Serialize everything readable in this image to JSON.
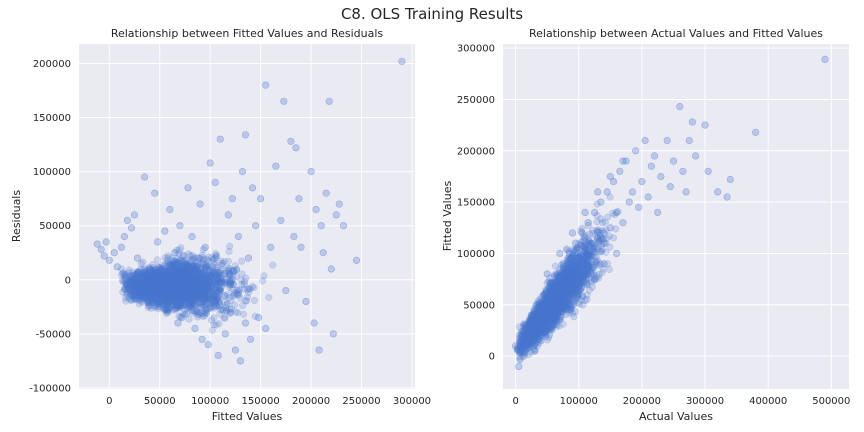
{
  "figure": {
    "title": "C8. OLS Training Results"
  },
  "colors": {
    "point": "#4878cf",
    "background": "#eaeaf2",
    "grid": "#ffffff"
  },
  "chart_data": [
    {
      "type": "scatter",
      "title": "Relationship between Fitted Values and Residuals",
      "xlabel": "Fitted Values",
      "ylabel": "Residuals",
      "xlim": [
        -30000,
        303000
      ],
      "ylim": [
        -101000,
        218000
      ],
      "xticks": [
        0,
        50000,
        100000,
        150000,
        200000,
        250000,
        300000
      ],
      "yticks": [
        -100000,
        -50000,
        0,
        50000,
        100000,
        150000,
        200000
      ],
      "grid": true,
      "points": [
        [
          -12000,
          33000
        ],
        [
          -8000,
          28000
        ],
        [
          -5000,
          22000
        ],
        [
          -3000,
          35000
        ],
        [
          0,
          18000
        ],
        [
          5000,
          25000
        ],
        [
          8000,
          12000
        ],
        [
          12000,
          30000
        ],
        [
          15000,
          40000
        ],
        [
          18000,
          55000
        ],
        [
          22000,
          48000
        ],
        [
          25000,
          60000
        ],
        [
          28000,
          20000
        ],
        [
          30000,
          -5000
        ],
        [
          35000,
          95000
        ],
        [
          40000,
          10000
        ],
        [
          42000,
          -10000
        ],
        [
          45000,
          80000
        ],
        [
          48000,
          35000
        ],
        [
          50000,
          -20000
        ],
        [
          55000,
          45000
        ],
        [
          58000,
          -30000
        ],
        [
          60000,
          65000
        ],
        [
          62000,
          -15000
        ],
        [
          65000,
          25000
        ],
        [
          68000,
          -40000
        ],
        [
          70000,
          50000
        ],
        [
          72000,
          -35000
        ],
        [
          75000,
          10000
        ],
        [
          78000,
          85000
        ],
        [
          80000,
          -25000
        ],
        [
          82000,
          40000
        ],
        [
          85000,
          -45000
        ],
        [
          88000,
          20000
        ],
        [
          90000,
          70000
        ],
        [
          92000,
          -55000
        ],
        [
          95000,
          30000
        ],
        [
          98000,
          -60000
        ],
        [
          100000,
          108000
        ],
        [
          102000,
          -20000
        ],
        [
          105000,
          90000
        ],
        [
          108000,
          -70000
        ],
        [
          110000,
          130000
        ],
        [
          112000,
          15000
        ],
        [
          115000,
          -50000
        ],
        [
          118000,
          60000
        ],
        [
          120000,
          -30000
        ],
        [
          122000,
          75000
        ],
        [
          125000,
          -65000
        ],
        [
          128000,
          40000
        ],
        [
          130000,
          -75000
        ],
        [
          132000,
          100000
        ],
        [
          135000,
          -40000
        ],
        [
          135000,
          134000
        ],
        [
          138000,
          20000
        ],
        [
          140000,
          -55000
        ],
        [
          142000,
          85000
        ],
        [
          145000,
          50000
        ],
        [
          148000,
          -35000
        ],
        [
          150000,
          75000
        ],
        [
          155000,
          180000
        ],
        [
          155000,
          -45000
        ],
        [
          160000,
          30000
        ],
        [
          165000,
          105000
        ],
        [
          170000,
          55000
        ],
        [
          173000,
          165000
        ],
        [
          175000,
          -10000
        ],
        [
          180000,
          128000
        ],
        [
          183000,
          40000
        ],
        [
          185000,
          122000
        ],
        [
          188000,
          75000
        ],
        [
          190000,
          30000
        ],
        [
          195000,
          -20000
        ],
        [
          200000,
          100000
        ],
        [
          203000,
          -40000
        ],
        [
          205000,
          65000
        ],
        [
          208000,
          -65000
        ],
        [
          210000,
          50000
        ],
        [
          212000,
          25000
        ],
        [
          215000,
          80000
        ],
        [
          218000,
          165000
        ],
        [
          220000,
          10000
        ],
        [
          222000,
          -50000
        ],
        [
          225000,
          60000
        ],
        [
          228000,
          70000
        ],
        [
          232000,
          50000
        ],
        [
          245000,
          18000
        ],
        [
          290000,
          202000
        ]
      ]
    },
    {
      "type": "scatter",
      "title": "Relationship between Actual Values and Fitted Values",
      "xlabel": "Actual Values",
      "ylabel": "Fitted Values",
      "xlim": [
        -20000,
        528000
      ],
      "ylim": [
        -32000,
        304000
      ],
      "xticks": [
        0,
        100000,
        200000,
        300000,
        400000,
        500000
      ],
      "yticks": [
        0,
        50000,
        100000,
        150000,
        200000,
        250000,
        300000
      ],
      "grid": true,
      "points": [
        [
          0,
          10000
        ],
        [
          5000,
          -10000
        ],
        [
          10000,
          20000
        ],
        [
          15000,
          5000
        ],
        [
          20000,
          30000
        ],
        [
          25000,
          40000
        ],
        [
          30000,
          25000
        ],
        [
          35000,
          50000
        ],
        [
          40000,
          35000
        ],
        [
          45000,
          60000
        ],
        [
          50000,
          45000
        ],
        [
          55000,
          70000
        ],
        [
          60000,
          55000
        ],
        [
          65000,
          80000
        ],
        [
          70000,
          65000
        ],
        [
          75000,
          90000
        ],
        [
          80000,
          75000
        ],
        [
          85000,
          100000
        ],
        [
          90000,
          85000
        ],
        [
          95000,
          110000
        ],
        [
          100000,
          95000
        ],
        [
          105000,
          120000
        ],
        [
          110000,
          105000
        ],
        [
          115000,
          130000
        ],
        [
          120000,
          110000
        ],
        [
          125000,
          140000
        ],
        [
          130000,
          115000
        ],
        [
          135000,
          150000
        ],
        [
          140000,
          120000
        ],
        [
          145000,
          160000
        ],
        [
          150000,
          125000
        ],
        [
          155000,
          170000
        ],
        [
          160000,
          140000
        ],
        [
          165000,
          180000
        ],
        [
          170000,
          130000
        ],
        [
          175000,
          190000
        ],
        [
          180000,
          150000
        ],
        [
          185000,
          160000
        ],
        [
          190000,
          200000
        ],
        [
          195000,
          145000
        ],
        [
          200000,
          170000
        ],
        [
          205000,
          210000
        ],
        [
          210000,
          155000
        ],
        [
          215000,
          185000
        ],
        [
          220000,
          195000
        ],
        [
          225000,
          140000
        ],
        [
          230000,
          175000
        ],
        [
          240000,
          210000
        ],
        [
          245000,
          165000
        ],
        [
          250000,
          190000
        ],
        [
          260000,
          243000
        ],
        [
          265000,
          180000
        ],
        [
          270000,
          160000
        ],
        [
          275000,
          210000
        ],
        [
          280000,
          228000
        ],
        [
          285000,
          195000
        ],
        [
          300000,
          225000
        ],
        [
          305000,
          180000
        ],
        [
          320000,
          160000
        ],
        [
          335000,
          155000
        ],
        [
          340000,
          172000
        ],
        [
          380000,
          218000
        ],
        [
          490000,
          289000
        ],
        [
          30000,
          5000
        ],
        [
          40000,
          15000
        ],
        [
          50000,
          80000
        ],
        [
          60000,
          30000
        ],
        [
          70000,
          100000
        ],
        [
          80000,
          50000
        ],
        [
          90000,
          120000
        ],
        [
          100000,
          60000
        ],
        [
          110000,
          140000
        ],
        [
          120000,
          80000
        ],
        [
          130000,
          160000
        ],
        [
          140000,
          90000
        ],
        [
          150000,
          175000
        ],
        [
          160000,
          100000
        ],
        [
          170000,
          190000
        ]
      ]
    }
  ]
}
